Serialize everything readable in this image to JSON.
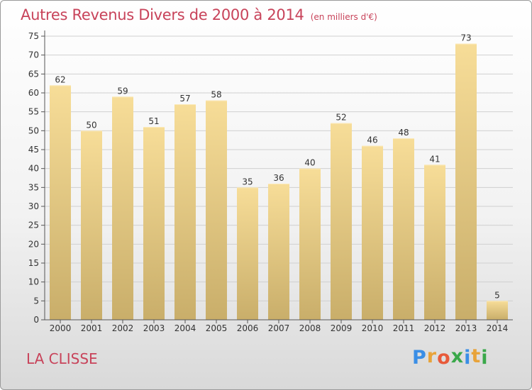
{
  "chart_data": {
    "type": "bar",
    "title": "Autres Revenus Divers de 2000 à 2014",
    "subtitle": "(en milliers d'€)",
    "categories": [
      "2000",
      "2001",
      "2002",
      "2003",
      "2004",
      "2005",
      "2006",
      "2007",
      "2008",
      "2009",
      "2010",
      "2011",
      "2012",
      "2013",
      "2014"
    ],
    "values": [
      62,
      50,
      59,
      51,
      57,
      58,
      35,
      36,
      40,
      52,
      46,
      48,
      41,
      73,
      5
    ],
    "ylim": [
      0,
      75
    ],
    "yticks": [
      0,
      5,
      10,
      15,
      20,
      25,
      30,
      35,
      40,
      45,
      50,
      55,
      60,
      65,
      70,
      75
    ],
    "grid": true,
    "legend": "none",
    "colors": {
      "bar_top": "#f7dd98",
      "bar_bottom": "#c9ae6a",
      "title": "#c8435a",
      "grid": "#d0d0d0"
    }
  },
  "footer": {
    "place": "LA CLISSE",
    "logo_letters": [
      {
        "ch": "P",
        "color": "#3a8ee6"
      },
      {
        "ch": "r",
        "color": "#e8a33a"
      },
      {
        "ch": "o",
        "color": "#e85a3a"
      },
      {
        "ch": "x",
        "color": "#3aa84a"
      },
      {
        "ch": "i",
        "color": "#3a8ee6"
      },
      {
        "ch": "t",
        "color": "#e8a33a"
      },
      {
        "ch": "i",
        "color": "#3aa84a"
      }
    ]
  }
}
